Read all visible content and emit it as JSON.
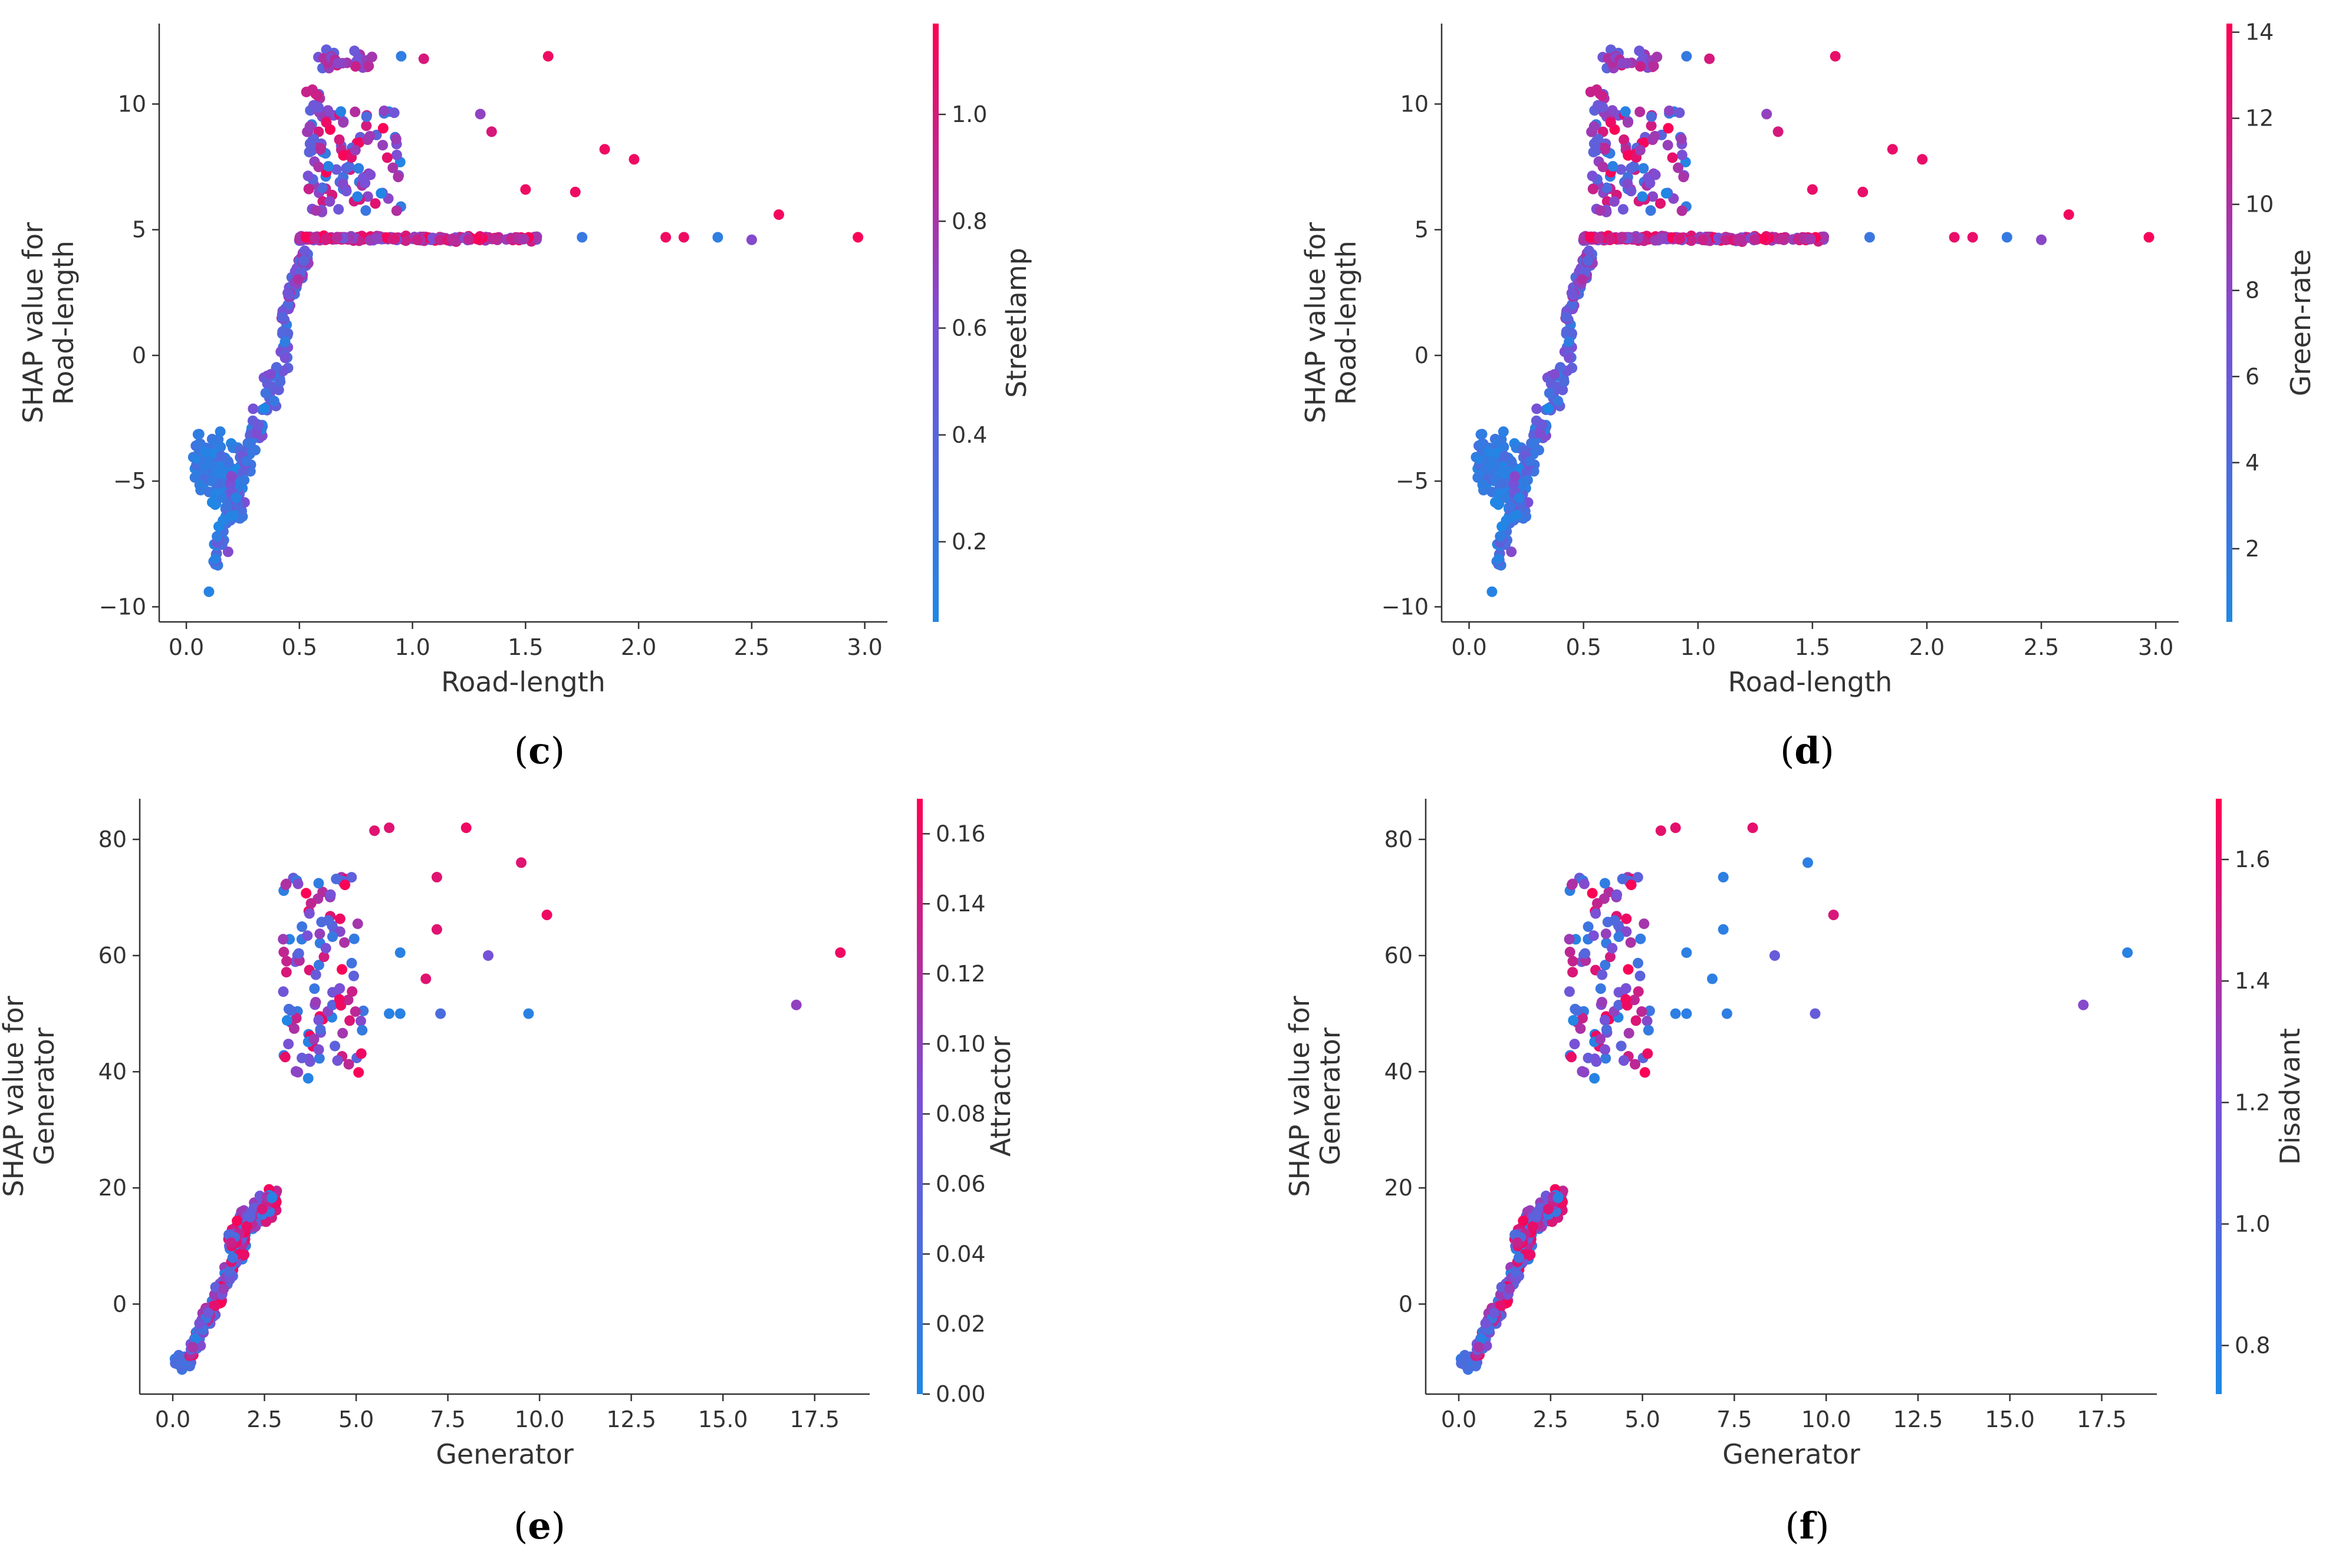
{
  "figure": {
    "background": "#ffffff",
    "axis_color": "#333333"
  },
  "colormap": {
    "low": "#1e88e5",
    "mid": "#7b4fd6",
    "high": "#ff0052"
  },
  "captions": [
    {
      "open": "(",
      "letter": "c",
      "close": ")"
    },
    {
      "open": "(",
      "letter": "d",
      "close": ")"
    },
    {
      "open": "(",
      "letter": "e",
      "close": ")"
    },
    {
      "open": "(",
      "letter": "f",
      "close": ")"
    }
  ],
  "chart_data": [
    {
      "id": "c",
      "type": "scatter",
      "cluster": "road",
      "xlabel": "Road-length",
      "ylabel": [
        "SHAP value for",
        "Road-length"
      ],
      "xlim": [
        -0.12,
        3.1
      ],
      "ylim": [
        -10.6,
        13.2
      ],
      "xticks": [
        0.0,
        0.5,
        1.0,
        1.5,
        2.0,
        2.5,
        3.0
      ],
      "xtick_labels": [
        "0.0",
        "0.5",
        "1.0",
        "1.5",
        "2.0",
        "2.5",
        "3.0"
      ],
      "yticks": [
        -10,
        -5,
        0,
        5,
        10
      ],
      "ytick_labels": [
        "−10",
        "−5",
        "0",
        "5",
        "10"
      ],
      "colorbar": {
        "label": "Streetlamp",
        "range": [
          0.05,
          1.17
        ],
        "ticks": [
          0.2,
          0.4,
          0.6,
          0.8,
          1.0
        ],
        "tick_labels": [
          "0.2",
          "0.4",
          "0.6",
          "0.8",
          "1.0"
        ]
      },
      "seed": 11,
      "notable_points": [
        {
          "x": 2.97,
          "y": 4.7,
          "c": 1.15
        },
        {
          "x": 2.62,
          "y": 5.6,
          "c": 1.12
        },
        {
          "x": 2.5,
          "y": 4.6,
          "c": 0.65
        },
        {
          "x": 2.35,
          "y": 4.7,
          "c": 0.15
        },
        {
          "x": 2.2,
          "y": 4.7,
          "c": 1.1
        },
        {
          "x": 2.12,
          "y": 4.7,
          "c": 1.1
        },
        {
          "x": 1.98,
          "y": 7.8,
          "c": 1.1
        },
        {
          "x": 1.85,
          "y": 8.2,
          "c": 1.1
        },
        {
          "x": 1.75,
          "y": 4.7,
          "c": 0.2
        },
        {
          "x": 1.6,
          "y": 11.9,
          "c": 1.1
        },
        {
          "x": 1.72,
          "y": 6.5,
          "c": 1.1
        },
        {
          "x": 1.5,
          "y": 6.6,
          "c": 1.1
        },
        {
          "x": 1.35,
          "y": 8.9,
          "c": 1.0
        },
        {
          "x": 1.3,
          "y": 9.6,
          "c": 0.7
        },
        {
          "x": 1.05,
          "y": 11.8,
          "c": 1.0
        },
        {
          "x": 0.95,
          "y": 11.9,
          "c": 0.15
        },
        {
          "x": 0.1,
          "y": -9.4,
          "c": 0.1
        }
      ]
    },
    {
      "id": "d",
      "type": "scatter",
      "cluster": "road",
      "xlabel": "Road-length",
      "ylabel": [
        "SHAP value for",
        "Road-length"
      ],
      "xlim": [
        -0.12,
        3.1
      ],
      "ylim": [
        -10.6,
        13.2
      ],
      "xticks": [
        0.0,
        0.5,
        1.0,
        1.5,
        2.0,
        2.5,
        3.0
      ],
      "xtick_labels": [
        "0.0",
        "0.5",
        "1.0",
        "1.5",
        "2.0",
        "2.5",
        "3.0"
      ],
      "yticks": [
        -10,
        -5,
        0,
        5,
        10
      ],
      "ytick_labels": [
        "−10",
        "−5",
        "0",
        "5",
        "10"
      ],
      "colorbar": {
        "label": "Green-rate",
        "range": [
          0.3,
          14.2
        ],
        "ticks": [
          2,
          4,
          6,
          8,
          10,
          12,
          14
        ],
        "tick_labels": [
          "2",
          "4",
          "6",
          "8",
          "10",
          "12",
          "14"
        ]
      },
      "seed": 11,
      "notable_points": [
        {
          "x": 2.97,
          "y": 4.7,
          "c": 13.8
        },
        {
          "x": 2.62,
          "y": 5.6,
          "c": 13.5
        },
        {
          "x": 2.5,
          "y": 4.6,
          "c": 8.0
        },
        {
          "x": 2.35,
          "y": 4.7,
          "c": 2.0
        },
        {
          "x": 2.2,
          "y": 4.7,
          "c": 13.0
        },
        {
          "x": 2.12,
          "y": 4.7,
          "c": 13.0
        },
        {
          "x": 1.98,
          "y": 7.8,
          "c": 13.0
        },
        {
          "x": 1.85,
          "y": 8.2,
          "c": 13.0
        },
        {
          "x": 1.75,
          "y": 4.7,
          "c": 2.5
        },
        {
          "x": 1.6,
          "y": 11.9,
          "c": 13.0
        },
        {
          "x": 1.72,
          "y": 6.5,
          "c": 13.0
        },
        {
          "x": 1.5,
          "y": 6.6,
          "c": 13.0
        },
        {
          "x": 1.35,
          "y": 8.9,
          "c": 12.0
        },
        {
          "x": 1.3,
          "y": 9.6,
          "c": 8.5
        },
        {
          "x": 1.05,
          "y": 11.8,
          "c": 12.0
        },
        {
          "x": 0.95,
          "y": 11.9,
          "c": 2.0
        },
        {
          "x": 0.1,
          "y": -9.4,
          "c": 1.0
        }
      ]
    },
    {
      "id": "e",
      "type": "scatter",
      "cluster": "generator",
      "xlabel": "Generator",
      "ylabel": [
        "SHAP value for",
        "Generator"
      ],
      "xlim": [
        -0.9,
        19.0
      ],
      "ylim": [
        -15.5,
        87.0
      ],
      "xticks": [
        0.0,
        2.5,
        5.0,
        7.5,
        10.0,
        12.5,
        15.0,
        17.5
      ],
      "xtick_labels": [
        "0.0",
        "2.5",
        "5.0",
        "7.5",
        "10.0",
        "12.5",
        "15.0",
        "17.5"
      ],
      "yticks": [
        0,
        20,
        40,
        60,
        80
      ],
      "ytick_labels": [
        "0",
        "20",
        "40",
        "60",
        "80"
      ],
      "colorbar": {
        "label": "Attractor",
        "range": [
          0.0,
          0.17
        ],
        "ticks": [
          0.0,
          0.02,
          0.04,
          0.06,
          0.08,
          0.1,
          0.12,
          0.14,
          0.16
        ],
        "tick_labels": [
          "0.00",
          "0.02",
          "0.04",
          "0.06",
          "0.08",
          "0.10",
          "0.12",
          "0.14",
          "0.16"
        ]
      },
      "seed": 29,
      "notable_points": [
        {
          "x": 18.2,
          "y": 60.5,
          "c": 0.16
        },
        {
          "x": 17.0,
          "y": 51.5,
          "c": 0.1
        },
        {
          "x": 10.2,
          "y": 67.0,
          "c": 0.16
        },
        {
          "x": 9.7,
          "y": 50.0,
          "c": 0.01
        },
        {
          "x": 9.5,
          "y": 76.0,
          "c": 0.15
        },
        {
          "x": 8.6,
          "y": 60.0,
          "c": 0.08
        },
        {
          "x": 8.0,
          "y": 82.0,
          "c": 0.16
        },
        {
          "x": 7.3,
          "y": 50.0,
          "c": 0.04
        },
        {
          "x": 7.2,
          "y": 73.5,
          "c": 0.15
        },
        {
          "x": 7.2,
          "y": 64.5,
          "c": 0.15
        },
        {
          "x": 6.9,
          "y": 56.0,
          "c": 0.15
        },
        {
          "x": 6.2,
          "y": 60.5,
          "c": 0.01
        },
        {
          "x": 6.2,
          "y": 50.0,
          "c": 0.01
        },
        {
          "x": 5.9,
          "y": 50.0,
          "c": 0.01
        },
        {
          "x": 5.9,
          "y": 82.0,
          "c": 0.15
        },
        {
          "x": 5.5,
          "y": 81.5,
          "c": 0.15
        }
      ]
    },
    {
      "id": "f",
      "type": "scatter",
      "cluster": "generator",
      "xlabel": "Generator",
      "ylabel": [
        "SHAP value for",
        "Generator"
      ],
      "xlim": [
        -0.9,
        19.0
      ],
      "ylim": [
        -15.5,
        87.0
      ],
      "xticks": [
        0.0,
        2.5,
        5.0,
        7.5,
        10.0,
        12.5,
        15.0,
        17.5
      ],
      "xtick_labels": [
        "0.0",
        "2.5",
        "5.0",
        "7.5",
        "10.0",
        "12.5",
        "15.0",
        "17.5"
      ],
      "yticks": [
        0,
        20,
        40,
        60,
        80
      ],
      "ytick_labels": [
        "0",
        "20",
        "40",
        "60",
        "80"
      ],
      "colorbar": {
        "label": "Disadvant",
        "range": [
          0.72,
          1.7
        ],
        "ticks": [
          0.8,
          1.0,
          1.2,
          1.4,
          1.6
        ],
        "tick_labels": [
          "0.8",
          "1.0",
          "1.2",
          "1.4",
          "1.6"
        ]
      },
      "seed": 29,
      "notable_points": [
        {
          "x": 18.2,
          "y": 60.5,
          "c": 0.78
        },
        {
          "x": 17.0,
          "y": 51.5,
          "c": 1.25
        },
        {
          "x": 10.2,
          "y": 67.0,
          "c": 1.55
        },
        {
          "x": 9.7,
          "y": 50.0,
          "c": 1.1
        },
        {
          "x": 9.5,
          "y": 76.0,
          "c": 0.8
        },
        {
          "x": 8.6,
          "y": 60.0,
          "c": 1.1
        },
        {
          "x": 8.0,
          "y": 82.0,
          "c": 1.6
        },
        {
          "x": 7.3,
          "y": 50.0,
          "c": 0.8
        },
        {
          "x": 7.2,
          "y": 73.5,
          "c": 0.8
        },
        {
          "x": 7.2,
          "y": 64.5,
          "c": 0.8
        },
        {
          "x": 6.9,
          "y": 56.0,
          "c": 0.8
        },
        {
          "x": 6.2,
          "y": 60.5,
          "c": 0.8
        },
        {
          "x": 6.2,
          "y": 50.0,
          "c": 0.8
        },
        {
          "x": 5.9,
          "y": 50.0,
          "c": 0.8
        },
        {
          "x": 5.9,
          "y": 82.0,
          "c": 1.6
        },
        {
          "x": 5.5,
          "y": 81.5,
          "c": 1.6
        }
      ]
    }
  ]
}
